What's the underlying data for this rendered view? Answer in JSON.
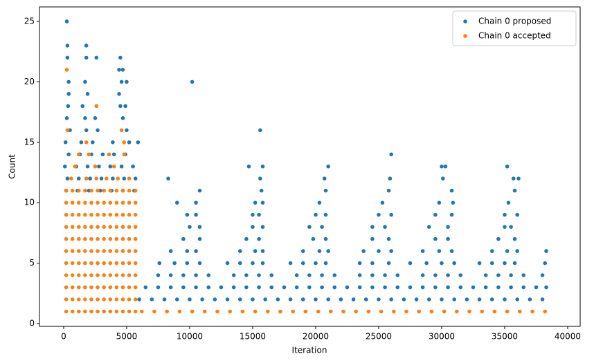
{
  "chart_data": {
    "type": "scatter",
    "xlabel": "Iteration",
    "ylabel": "Count",
    "xlim": [
      -1920,
      40990
    ],
    "ylim": [
      -0.23,
      26.2
    ],
    "xticks": [
      0,
      5000,
      10000,
      15000,
      20000,
      25000,
      30000,
      35000,
      40000
    ],
    "yticks": [
      0,
      5,
      10,
      15,
      20,
      25
    ],
    "legend": "upper right",
    "series": [
      {
        "name": "Chain 0 proposed",
        "color": "#1f77b4",
        "x": [
          200,
          1100,
          2000,
          2900,
          3800,
          4700,
          5600,
          300,
          1200,
          2100,
          3000,
          3900,
          4800,
          5700,
          100,
          1000,
          1900,
          2800,
          3700,
          4600,
          5500,
          400,
          1300,
          2200,
          3100,
          4000,
          4900,
          150,
          1400,
          2300,
          3900,
          5200,
          5900,
          250,
          300,
          300,
          1800,
          1800,
          2600,
          4500,
          4400,
          4700,
          4600,
          5000,
          1700,
          400,
          400,
          1900,
          4400,
          350,
          1500,
          4500,
          4900,
          250,
          1700,
          2500,
          4700,
          500,
          1800,
          2700,
          5000,
          6000,
          7000,
          8000,
          9000,
          10000,
          11000,
          12000,
          13000,
          14000,
          15000,
          16000,
          17000,
          18000,
          19000,
          20000,
          21000,
          22000,
          23000,
          24000,
          25000,
          26000,
          27000,
          28000,
          29000,
          30000,
          31000,
          32000,
          33000,
          34000,
          35000,
          36000,
          37000,
          38000,
          6500,
          7500,
          8500,
          9500,
          10500,
          11500,
          12500,
          13500,
          14500,
          15500,
          16500,
          17500,
          18500,
          19500,
          20500,
          21500,
          22500,
          23500,
          24500,
          25500,
          26500,
          27500,
          28500,
          29500,
          30500,
          31500,
          32500,
          33500,
          34500,
          35500,
          36500,
          37500,
          38300,
          7500,
          8500,
          9500,
          10500,
          11500,
          13500,
          14500,
          15500,
          16500,
          18500,
          19500,
          20500,
          21500,
          23500,
          24500,
          25500,
          26500,
          28500,
          29500,
          30500,
          31500,
          33500,
          34500,
          35500,
          36500,
          38000,
          7600,
          8800,
          9800,
          10800,
          13000,
          14000,
          15000,
          15800,
          18000,
          19000,
          20000,
          20800,
          23500,
          24500,
          25800,
          27500,
          28800,
          30000,
          31000,
          33000,
          34000,
          35000,
          35800,
          38200,
          8500,
          9800,
          10500,
          14000,
          15200,
          15800,
          19000,
          20300,
          21000,
          23800,
          25000,
          26000,
          28500,
          29800,
          30800,
          34000,
          35200,
          36000,
          38300,
          9500,
          10800,
          14500,
          15500,
          19800,
          20800,
          24500,
          25800,
          29500,
          30500,
          34500,
          35800,
          10000,
          10800,
          15000,
          15800,
          19500,
          20500,
          24500,
          25500,
          29000,
          30500,
          35000,
          35500,
          9800,
          10500,
          15000,
          15500,
          20000,
          20800,
          25000,
          26000,
          29500,
          30800,
          35000,
          36000,
          9000,
          10500,
          15200,
          15800,
          20300,
          25300,
          29800,
          30900,
          35300,
          10800,
          15700,
          20800,
          25800,
          30800,
          35800,
          8300,
          15600,
          20700,
          25900,
          30100,
          35700,
          36100,
          14700,
          15800,
          21000,
          30000,
          30300,
          35200,
          26000,
          15600,
          10200
        ],
        "values": [
          11,
          11,
          11,
          11,
          11,
          11,
          11,
          12,
          12,
          12,
          12,
          12,
          12,
          12,
          13,
          13,
          13,
          13,
          13,
          13,
          13,
          14,
          14,
          14,
          14,
          14,
          14,
          15,
          15,
          15,
          15,
          15,
          15,
          25,
          23,
          22,
          23,
          22,
          22,
          22,
          21,
          21,
          20,
          20,
          20,
          20,
          19,
          19,
          19,
          18,
          18,
          18,
          18,
          17,
          17,
          17,
          17,
          16,
          16,
          16,
          16,
          2,
          2,
          2,
          2,
          2,
          2,
          2,
          2,
          2,
          2,
          2,
          2,
          2,
          2,
          2,
          2,
          2,
          2,
          2,
          2,
          2,
          2,
          2,
          2,
          2,
          2,
          2,
          2,
          2,
          2,
          2,
          2,
          2,
          3,
          3,
          3,
          3,
          3,
          3,
          3,
          3,
          3,
          3,
          3,
          3,
          3,
          3,
          3,
          3,
          3,
          3,
          3,
          3,
          3,
          3,
          3,
          3,
          3,
          3,
          3,
          3,
          3,
          3,
          3,
          3,
          3,
          4,
          4,
          4,
          4,
          4,
          4,
          4,
          4,
          4,
          4,
          4,
          4,
          4,
          4,
          4,
          4,
          4,
          4,
          4,
          4,
          4,
          4,
          4,
          4,
          4,
          4,
          5,
          5,
          5,
          5,
          5,
          5,
          5,
          5,
          5,
          5,
          5,
          5,
          5,
          5,
          5,
          5,
          5,
          5,
          5,
          5,
          5,
          5,
          5,
          5,
          6,
          6,
          6,
          6,
          6,
          6,
          6,
          6,
          6,
          6,
          6,
          6,
          6,
          6,
          6,
          6,
          6,
          6,
          6,
          7,
          7,
          7,
          7,
          7,
          7,
          7,
          7,
          7,
          7,
          7,
          7,
          8,
          8,
          8,
          8,
          8,
          8,
          8,
          8,
          8,
          8,
          8,
          8,
          9,
          9,
          9,
          9,
          9,
          9,
          9,
          9,
          9,
          9,
          9,
          9,
          10,
          10,
          10,
          10,
          10,
          10,
          10,
          10,
          10,
          11,
          11,
          11,
          11,
          11,
          11,
          12,
          12,
          12,
          12,
          12,
          12,
          12,
          13,
          13,
          13,
          13,
          13,
          13,
          14,
          16,
          20
        ]
      },
      {
        "name": "Chain 0 accepted",
        "color": "#ff7f0e",
        "x": [
          200,
          700,
          1200,
          1700,
          2200,
          2700,
          3200,
          3700,
          4200,
          4700,
          5200,
          5700,
          200,
          700,
          1200,
          1700,
          2200,
          2700,
          3200,
          3700,
          4200,
          4700,
          5200,
          5700,
          200,
          700,
          1200,
          1700,
          2200,
          2700,
          3200,
          3700,
          4200,
          4700,
          5200,
          5700,
          200,
          700,
          1200,
          1700,
          2200,
          2700,
          3200,
          3700,
          4200,
          4700,
          5200,
          5700,
          200,
          700,
          1200,
          1700,
          2200,
          2700,
          3200,
          3700,
          4200,
          4700,
          5200,
          5700,
          200,
          700,
          1200,
          1700,
          2200,
          2700,
          3200,
          3700,
          4200,
          4700,
          5200,
          5700,
          200,
          700,
          1200,
          1700,
          2200,
          2700,
          3200,
          3700,
          4200,
          4700,
          5200,
          5700,
          200,
          700,
          1200,
          1700,
          2200,
          2700,
          3200,
          3700,
          4200,
          4700,
          5200,
          5700,
          200,
          700,
          1200,
          1700,
          2200,
          2700,
          3200,
          3700,
          4200,
          4700,
          5200,
          5700,
          200,
          700,
          1200,
          1700,
          2200,
          2700,
          3200,
          3700,
          4200,
          4700,
          5200,
          5700,
          200,
          700,
          1200,
          1700,
          2200,
          2700,
          3200,
          3700,
          4200,
          4700,
          5200,
          5700,
          600,
          1800,
          2600,
          3400,
          4300,
          5200,
          900,
          2500,
          4000,
          1200,
          2000,
          3600,
          4800,
          1800,
          4800,
          300,
          4600,
          2600,
          250,
          6200,
          7200,
          8200,
          9200,
          10200,
          11200,
          12200,
          13200,
          14200,
          15200,
          16200,
          17200,
          18200,
          19200,
          20200,
          21200,
          22200,
          23200,
          24200,
          25200,
          26200,
          27200,
          28200,
          29200,
          30200,
          31200,
          32200,
          33200,
          34200,
          35200,
          36200,
          37200,
          38200
        ],
        "values": [
          1,
          1,
          1,
          1,
          1,
          1,
          1,
          1,
          1,
          1,
          1,
          1,
          2,
          2,
          2,
          2,
          2,
          2,
          2,
          2,
          2,
          2,
          2,
          2,
          3,
          3,
          3,
          3,
          3,
          3,
          3,
          3,
          3,
          3,
          3,
          3,
          4,
          4,
          4,
          4,
          4,
          4,
          4,
          4,
          4,
          4,
          4,
          4,
          5,
          5,
          5,
          5,
          5,
          5,
          5,
          5,
          5,
          5,
          5,
          5,
          6,
          6,
          6,
          6,
          6,
          6,
          6,
          6,
          6,
          6,
          6,
          6,
          7,
          7,
          7,
          7,
          7,
          7,
          7,
          7,
          7,
          7,
          7,
          7,
          8,
          8,
          8,
          8,
          8,
          8,
          8,
          8,
          8,
          8,
          8,
          8,
          9,
          9,
          9,
          9,
          9,
          9,
          9,
          9,
          9,
          9,
          9,
          9,
          10,
          10,
          10,
          10,
          10,
          10,
          10,
          10,
          10,
          10,
          10,
          10,
          11,
          11,
          11,
          11,
          11,
          11,
          11,
          11,
          11,
          11,
          11,
          11,
          12,
          12,
          12,
          12,
          12,
          12,
          13,
          13,
          13,
          14,
          14,
          14,
          14,
          15,
          15,
          16,
          16,
          18,
          21,
          1,
          1,
          1,
          1,
          1,
          1,
          1,
          1,
          1,
          1,
          1,
          1,
          1,
          1,
          1,
          1,
          1,
          1,
          1,
          1,
          1,
          1,
          1,
          1,
          1,
          1,
          1,
          1,
          1,
          1,
          1,
          1,
          1
        ]
      }
    ]
  }
}
